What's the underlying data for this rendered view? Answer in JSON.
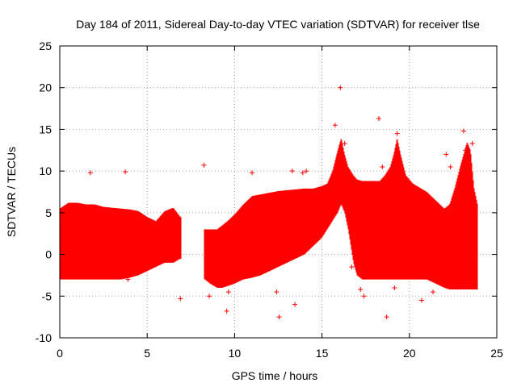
{
  "chart_data": {
    "type": "scatter",
    "title": "Day 184 of 2011, Sidereal Day-to-day VTEC variation (SDTVAR) for receiver tlse",
    "xlabel": "GPS time / hours",
    "ylabel": "SDTVAR / TECUs",
    "xlim": [
      0,
      25
    ],
    "ylim": [
      -10,
      25
    ],
    "xticks": [
      "0",
      "5",
      "10",
      "15",
      "20",
      "25"
    ],
    "yticks": [
      "-10",
      "-5",
      "0",
      "5",
      "10",
      "15",
      "20",
      "25"
    ],
    "grid": true,
    "marker": "plus",
    "color": "#ff0000",
    "series": [
      {
        "name": "SDTVAR",
        "envelope_x": [
          0,
          0.5,
          1,
          1.5,
          2,
          2.5,
          3,
          3.5,
          4,
          4.5,
          5,
          5.5,
          6,
          6.5,
          6.9,
          8.3,
          8.6,
          9.0,
          9.3,
          9.6,
          10,
          10.5,
          11,
          11.5,
          12,
          12.5,
          13,
          13.5,
          14,
          14.5,
          15,
          15.3,
          15.6,
          15.9,
          16.1,
          16.3,
          16.5,
          16.8,
          17,
          17.3,
          17.6,
          18,
          18.3,
          18.6,
          18.9,
          19.1,
          19.3,
          19.5,
          19.8,
          20.2,
          20.6,
          21,
          21.5,
          22,
          22.3,
          22.6,
          22.9,
          23.1,
          23.3,
          23.5,
          23.7,
          23.9
        ],
        "envelope_upper": [
          5.5,
          6.2,
          6.2,
          6.0,
          6.0,
          5.7,
          5.6,
          5.5,
          5.4,
          5.2,
          4.5,
          4.0,
          5.2,
          5.6,
          4.5,
          3.0,
          3.0,
          3.0,
          3.5,
          4.0,
          4.8,
          6.0,
          7.0,
          7.2,
          7.4,
          7.6,
          7.7,
          7.8,
          7.9,
          7.9,
          8.2,
          8.5,
          10.0,
          12.5,
          14.0,
          12.0,
          10.5,
          9.5,
          9.0,
          8.8,
          8.8,
          8.8,
          8.8,
          9.5,
          10.5,
          12.0,
          14.0,
          12.0,
          9.5,
          8.5,
          8.0,
          7.5,
          6.5,
          5.5,
          6.0,
          8.0,
          10.5,
          12.0,
          13.5,
          12.5,
          8.0,
          6.0
        ],
        "envelope_lower": [
          -3.0,
          -3.0,
          -3.0,
          -3.0,
          -3.0,
          -3.0,
          -3.0,
          -3.0,
          -2.8,
          -2.5,
          -2.0,
          -1.5,
          -1.0,
          -1.0,
          -0.5,
          -3.0,
          -3.5,
          -4.0,
          -4.0,
          -3.8,
          -3.5,
          -3.0,
          -2.8,
          -2.5,
          -2.0,
          -1.5,
          -1.0,
          -0.5,
          0.0,
          1.0,
          2.0,
          3.0,
          4.0,
          5.0,
          6.0,
          5.0,
          3.0,
          -1.0,
          -2.5,
          -3.0,
          -3.0,
          -3.0,
          -3.0,
          -3.0,
          -3.0,
          -3.0,
          -3.0,
          -3.0,
          -3.0,
          -3.0,
          -3.0,
          -3.0,
          -3.5,
          -4.0,
          -4.2,
          -4.2,
          -4.2,
          -4.2,
          -4.2,
          -4.2,
          -4.2,
          -4.2
        ],
        "outliers_x": [
          1.75,
          3.75,
          3.9,
          8.25,
          8.55,
          9.65,
          9.75,
          11.0,
          12.4,
          12.55,
          13.3,
          13.45,
          13.9,
          14.1,
          15.75,
          16.05,
          16.3,
          16.7,
          17.2,
          17.4,
          18.25,
          18.45,
          18.7,
          19.15,
          19.3,
          20.7,
          21.35,
          22.1,
          22.35,
          23.1,
          23.2,
          23.6,
          6.9,
          9.55
        ],
        "outliers_y": [
          9.8,
          9.9,
          -3.0,
          10.7,
          -5.0,
          -4.5,
          4.0,
          9.8,
          -4.5,
          -7.5,
          10.0,
          -6.0,
          9.8,
          10.0,
          15.5,
          20.0,
          13.3,
          -1.5,
          -4.2,
          -5.0,
          16.3,
          10.5,
          -7.5,
          -4.0,
          14.5,
          -5.5,
          -4.5,
          12.0,
          10.5,
          14.8,
          12.5,
          13.3,
          -5.3,
          -6.8
        ]
      }
    ]
  }
}
